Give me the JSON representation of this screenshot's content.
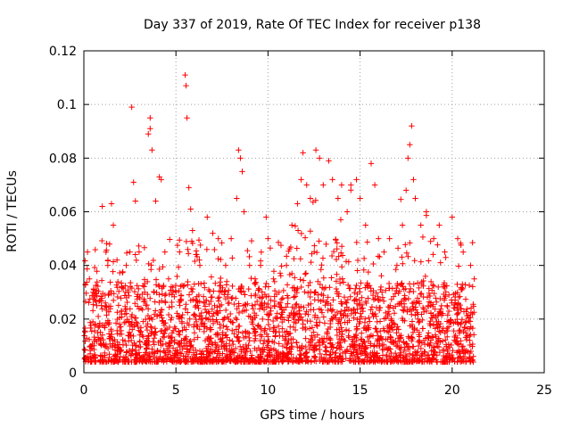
{
  "chart_data": {
    "type": "scatter",
    "title": "Day 337 of 2019, Rate Of TEC Index for receiver p138",
    "xlabel": "GPS time / hours",
    "ylabel": "ROTI / TECUs",
    "xlim": [
      0,
      25
    ],
    "ylim": [
      0,
      0.12
    ],
    "x_ticks": [
      "0",
      "5",
      "10",
      "15",
      "20",
      "25"
    ],
    "y_ticks": [
      "0",
      "0.02",
      "0.04",
      "0.06",
      "0.08",
      "0.1",
      "0.12"
    ],
    "grid": true,
    "marker": "+",
    "color": "#ff0000",
    "x_data_range": [
      0,
      21.2
    ],
    "series": [
      {
        "points": [
          [
            0.2,
            0.045
          ],
          [
            0.3,
            0.035
          ],
          [
            0.5,
            0.03
          ],
          [
            0.7,
            0.025
          ],
          [
            1.0,
            0.062
          ],
          [
            1.2,
            0.045
          ],
          [
            1.3,
            0.04
          ],
          [
            1.5,
            0.063
          ],
          [
            1.6,
            0.055
          ],
          [
            1.8,
            0.042
          ],
          [
            2.3,
            0.04
          ],
          [
            2.5,
            0.045
          ],
          [
            2.6,
            0.099
          ],
          [
            2.7,
            0.071
          ],
          [
            2.8,
            0.064
          ],
          [
            3.0,
            0.045
          ],
          [
            3.3,
            0.03
          ],
          [
            3.5,
            0.089
          ],
          [
            3.6,
            0.095
          ],
          [
            3.6,
            0.091
          ],
          [
            3.7,
            0.083
          ],
          [
            3.9,
            0.064
          ],
          [
            4.1,
            0.073
          ],
          [
            4.2,
            0.072
          ],
          [
            4.4,
            0.045
          ],
          [
            4.6,
            0.035
          ],
          [
            5.0,
            0.03
          ],
          [
            5.2,
            0.045
          ],
          [
            5.5,
            0.111
          ],
          [
            5.55,
            0.107
          ],
          [
            5.6,
            0.095
          ],
          [
            5.7,
            0.069
          ],
          [
            5.8,
            0.061
          ],
          [
            5.9,
            0.053
          ],
          [
            6.3,
            0.04
          ],
          [
            6.7,
            0.058
          ],
          [
            7.0,
            0.052
          ],
          [
            7.3,
            0.05
          ],
          [
            7.7,
            0.04
          ],
          [
            8.0,
            0.05
          ],
          [
            8.3,
            0.065
          ],
          [
            8.4,
            0.083
          ],
          [
            8.5,
            0.08
          ],
          [
            8.6,
            0.075
          ],
          [
            8.7,
            0.06
          ],
          [
            9.0,
            0.04
          ],
          [
            9.3,
            0.035
          ],
          [
            9.6,
            0.04
          ],
          [
            9.9,
            0.058
          ],
          [
            10.0,
            0.05
          ],
          [
            10.3,
            0.035
          ],
          [
            10.6,
            0.03
          ],
          [
            11.0,
            0.04
          ],
          [
            11.3,
            0.055
          ],
          [
            11.6,
            0.063
          ],
          [
            11.8,
            0.072
          ],
          [
            11.9,
            0.082
          ],
          [
            12.1,
            0.07
          ],
          [
            12.3,
            0.065
          ],
          [
            12.6,
            0.083
          ],
          [
            12.8,
            0.08
          ],
          [
            13.0,
            0.07
          ],
          [
            13.3,
            0.079
          ],
          [
            13.5,
            0.072
          ],
          [
            13.8,
            0.065
          ],
          [
            14.0,
            0.07
          ],
          [
            14.3,
            0.06
          ],
          [
            14.5,
            0.07
          ],
          [
            14.8,
            0.072
          ],
          [
            15.0,
            0.065
          ],
          [
            15.3,
            0.055
          ],
          [
            15.6,
            0.078
          ],
          [
            15.8,
            0.07
          ],
          [
            16.0,
            0.05
          ],
          [
            16.3,
            0.045
          ],
          [
            16.6,
            0.05
          ],
          [
            17.0,
            0.04
          ],
          [
            17.3,
            0.055
          ],
          [
            17.5,
            0.068
          ],
          [
            17.6,
            0.08
          ],
          [
            17.7,
            0.085
          ],
          [
            17.8,
            0.092
          ],
          [
            17.9,
            0.072
          ],
          [
            18.0,
            0.065
          ],
          [
            18.3,
            0.055
          ],
          [
            18.6,
            0.06
          ],
          [
            19.0,
            0.05
          ],
          [
            19.3,
            0.055
          ],
          [
            19.6,
            0.045
          ],
          [
            20.0,
            0.058
          ],
          [
            20.3,
            0.05
          ],
          [
            20.6,
            0.045
          ],
          [
            21.0,
            0.04
          ],
          [
            21.2,
            0.035
          ]
        ]
      }
    ]
  }
}
